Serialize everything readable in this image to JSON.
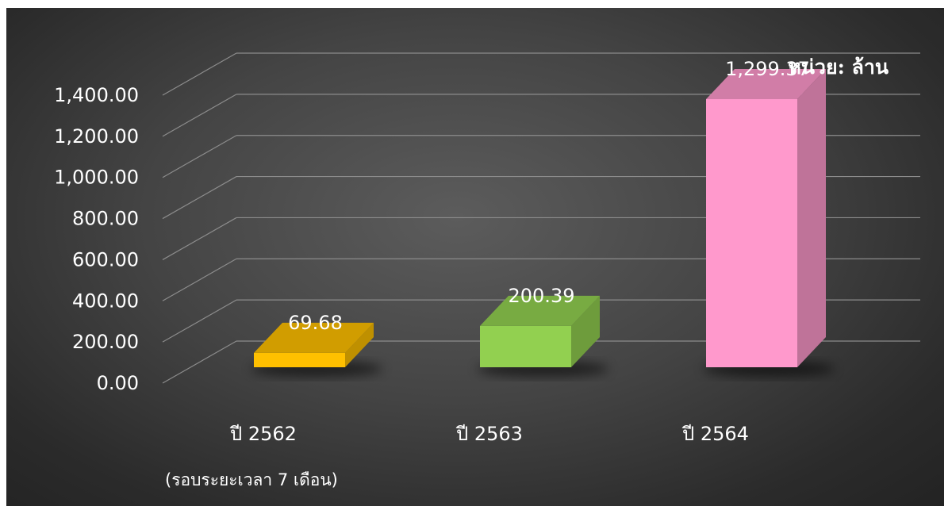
{
  "chart_data": {
    "type": "bar",
    "style": "3d-column",
    "categories": [
      "ปี 2562",
      "ปี 2563",
      "ปี 2564"
    ],
    "category_sublabels": [
      "(รอบระยะเวลา 7 เดือน)",
      "",
      ""
    ],
    "values": [
      69.68,
      200.39,
      1299.37
    ],
    "data_labels": [
      "69.68",
      "200.39",
      "1,299.37"
    ],
    "colors": [
      "#FFC000",
      "#92D050",
      "#FF99CC"
    ],
    "ylim": [
      0,
      1400
    ],
    "yticks": [
      {
        "value": 0,
        "label": "0.00"
      },
      {
        "value": 200,
        "label": "200.00"
      },
      {
        "value": 400,
        "label": "400.00"
      },
      {
        "value": 600,
        "label": "600.00"
      },
      {
        "value": 800,
        "label": "800.00"
      },
      {
        "value": 1000,
        "label": "1,000.00"
      },
      {
        "value": 1200,
        "label": "1,200.00"
      },
      {
        "value": 1400,
        "label": "1,400.00"
      }
    ],
    "unit_label": "หน่วย: ล้าน",
    "grid": true,
    "legend": "none",
    "background": "#3c3c3c"
  }
}
